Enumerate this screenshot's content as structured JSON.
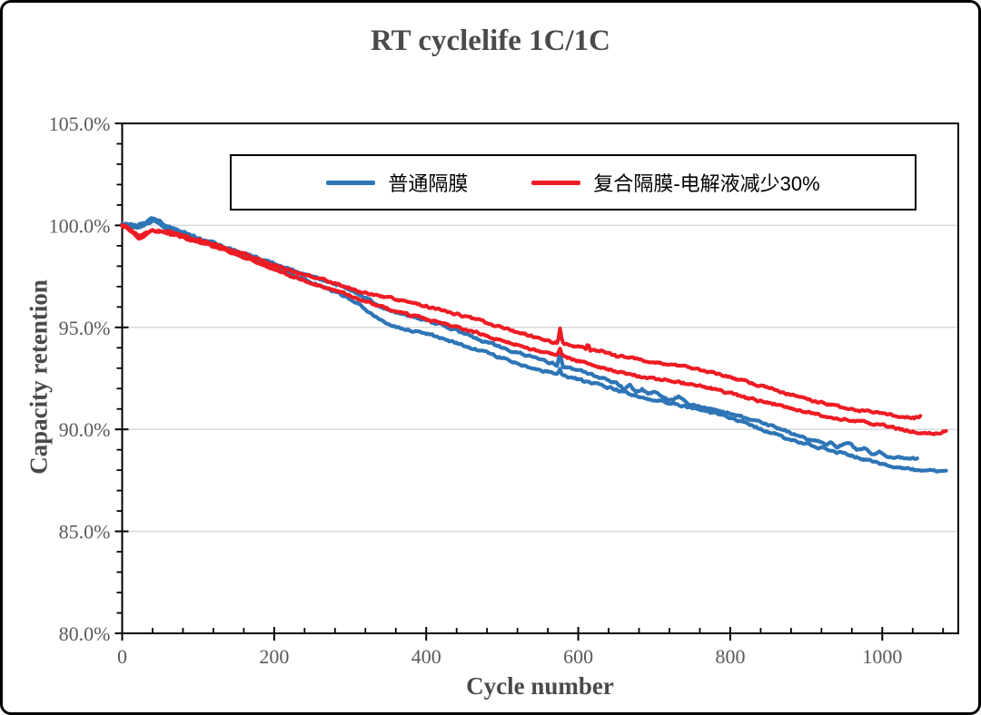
{
  "figure": {
    "title": "RT cyclelife 1C/1C"
  },
  "chart_data": {
    "type": "line",
    "title": "RT cyclelife 1C/1C",
    "xlabel": "Cycle number",
    "ylabel": "Capacity retention",
    "x_axis": {
      "min": 0,
      "max": 1100,
      "major_tick_step": 200,
      "minor_tick_step": 40,
      "ticks": [
        {
          "value": 0,
          "label": "0"
        },
        {
          "value": 200,
          "label": "200"
        },
        {
          "value": 400,
          "label": "400"
        },
        {
          "value": 600,
          "label": "600"
        },
        {
          "value": 800,
          "label": "800"
        },
        {
          "value": 1000,
          "label": "1000"
        }
      ]
    },
    "y_axis": {
      "min": 80,
      "max": 105,
      "major_tick_step": 5,
      "minor_tick_step": 1,
      "unit": "%",
      "ticks": [
        {
          "value": 105,
          "label": "105.0%"
        },
        {
          "value": 100,
          "label": "100.0%"
        },
        {
          "value": 95,
          "label": "95.0%"
        },
        {
          "value": 90,
          "label": "90.0%"
        },
        {
          "value": 85,
          "label": "85.0%"
        },
        {
          "value": 80,
          "label": "80.0%"
        }
      ],
      "gridline_values": [
        100,
        95,
        90,
        85
      ]
    },
    "grid": "horizontal major gridlines only",
    "legend": {
      "position": "top-center-inside-bordered-box",
      "items": [
        {
          "label": "普通隔膜",
          "color": "#2E75B6"
        },
        {
          "label": "复合隔膜-电解液减少30%",
          "color": "#ED1C24"
        }
      ]
    },
    "colors": {
      "blue_series": "#2E75B6",
      "red_series": "#ED1C24",
      "gridline": "#D9D9D9",
      "axis": "#000000",
      "text_gray": "#595959",
      "title_gray": "#4a4a4a"
    },
    "series": [
      {
        "name": "普通隔膜 (cell 1)",
        "legend_index": 0,
        "color": "#2E75B6",
        "points": [
          [
            0,
            100.1
          ],
          [
            8,
            100.05
          ],
          [
            16,
            100.0
          ],
          [
            24,
            100.05
          ],
          [
            32,
            100.15
          ],
          [
            40,
            100.35
          ],
          [
            48,
            100.25
          ],
          [
            56,
            100.0
          ],
          [
            64,
            99.9
          ],
          [
            75,
            99.75
          ],
          [
            90,
            99.55
          ],
          [
            100,
            99.4
          ],
          [
            115,
            99.2
          ],
          [
            130,
            99.0
          ],
          [
            150,
            98.75
          ],
          [
            175,
            98.45
          ],
          [
            200,
            98.1
          ],
          [
            225,
            97.8
          ],
          [
            250,
            97.5
          ],
          [
            275,
            97.2
          ],
          [
            300,
            96.85
          ],
          [
            325,
            96.35
          ],
          [
            345,
            95.95
          ],
          [
            360,
            95.75
          ],
          [
            375,
            95.6
          ],
          [
            400,
            95.35
          ],
          [
            425,
            95.05
          ],
          [
            450,
            94.7
          ],
          [
            475,
            94.35
          ],
          [
            500,
            94.0
          ],
          [
            525,
            93.7
          ],
          [
            550,
            93.4
          ],
          [
            565,
            93.25
          ],
          [
            573,
            93.15
          ],
          [
            576,
            93.9
          ],
          [
            579,
            93.1
          ],
          [
            600,
            92.9
          ],
          [
            625,
            92.6
          ],
          [
            650,
            92.3
          ],
          [
            660,
            92.0
          ],
          [
            668,
            92.15
          ],
          [
            676,
            91.8
          ],
          [
            684,
            92.0
          ],
          [
            692,
            91.7
          ],
          [
            700,
            91.85
          ],
          [
            710,
            91.6
          ],
          [
            722,
            91.45
          ],
          [
            732,
            91.6
          ],
          [
            742,
            91.3
          ],
          [
            755,
            91.15
          ],
          [
            775,
            91.0
          ],
          [
            800,
            90.8
          ],
          [
            825,
            90.5
          ],
          [
            850,
            90.2
          ],
          [
            875,
            89.9
          ],
          [
            890,
            89.65
          ],
          [
            905,
            89.5
          ],
          [
            915,
            89.45
          ],
          [
            925,
            89.2
          ],
          [
            933,
            89.4
          ],
          [
            941,
            89.1
          ],
          [
            950,
            89.3
          ],
          [
            960,
            89.25
          ],
          [
            967,
            88.95
          ],
          [
            977,
            89.1
          ],
          [
            987,
            88.8
          ],
          [
            997,
            88.9
          ],
          [
            1007,
            88.7
          ],
          [
            1020,
            88.6
          ],
          [
            1035,
            88.57
          ],
          [
            1047,
            88.6
          ]
        ]
      },
      {
        "name": "普通隔膜 (cell 2)",
        "legend_index": 0,
        "color": "#2E75B6",
        "points": [
          [
            0,
            100.05
          ],
          [
            8,
            100.0
          ],
          [
            16,
            99.9
          ],
          [
            24,
            99.95
          ],
          [
            32,
            100.05
          ],
          [
            40,
            100.25
          ],
          [
            48,
            100.15
          ],
          [
            56,
            99.9
          ],
          [
            64,
            99.8
          ],
          [
            75,
            99.65
          ],
          [
            90,
            99.45
          ],
          [
            100,
            99.3
          ],
          [
            115,
            99.1
          ],
          [
            130,
            98.9
          ],
          [
            150,
            98.6
          ],
          [
            175,
            98.25
          ],
          [
            200,
            97.9
          ],
          [
            225,
            97.55
          ],
          [
            250,
            97.2
          ],
          [
            275,
            96.8
          ],
          [
            300,
            96.4
          ],
          [
            325,
            95.75
          ],
          [
            345,
            95.25
          ],
          [
            355,
            95.05
          ],
          [
            375,
            94.9
          ],
          [
            400,
            94.7
          ],
          [
            425,
            94.4
          ],
          [
            450,
            94.1
          ],
          [
            475,
            93.8
          ],
          [
            500,
            93.5
          ],
          [
            525,
            93.2
          ],
          [
            550,
            92.9
          ],
          [
            573,
            92.7
          ],
          [
            576,
            93.0
          ],
          [
            579,
            92.65
          ],
          [
            600,
            92.45
          ],
          [
            625,
            92.2
          ],
          [
            650,
            91.95
          ],
          [
            675,
            91.65
          ],
          [
            700,
            91.45
          ],
          [
            725,
            91.25
          ],
          [
            750,
            91.05
          ],
          [
            775,
            90.85
          ],
          [
            800,
            90.55
          ],
          [
            825,
            90.25
          ],
          [
            850,
            89.9
          ],
          [
            875,
            89.55
          ],
          [
            900,
            89.3
          ],
          [
            913,
            89.15
          ],
          [
            925,
            89.05
          ],
          [
            950,
            88.8
          ],
          [
            975,
            88.55
          ],
          [
            1000,
            88.3
          ],
          [
            1025,
            88.1
          ],
          [
            1045,
            88.0
          ],
          [
            1065,
            87.95
          ],
          [
            1085,
            87.9
          ]
        ]
      },
      {
        "name": "复合隔膜-电解液减少30% (cell 1)",
        "legend_index": 1,
        "color": "#ED1C24",
        "points": [
          [
            0,
            100.0
          ],
          [
            8,
            99.9
          ],
          [
            14,
            99.7
          ],
          [
            22,
            99.45
          ],
          [
            30,
            99.6
          ],
          [
            40,
            99.8
          ],
          [
            50,
            99.75
          ],
          [
            60,
            99.7
          ],
          [
            75,
            99.55
          ],
          [
            90,
            99.4
          ],
          [
            100,
            99.3
          ],
          [
            115,
            99.1
          ],
          [
            130,
            98.95
          ],
          [
            150,
            98.7
          ],
          [
            175,
            98.4
          ],
          [
            200,
            98.05
          ],
          [
            225,
            97.75
          ],
          [
            250,
            97.5
          ],
          [
            275,
            97.2
          ],
          [
            300,
            96.9
          ],
          [
            325,
            96.65
          ],
          [
            350,
            96.45
          ],
          [
            375,
            96.25
          ],
          [
            400,
            96.05
          ],
          [
            425,
            95.8
          ],
          [
            450,
            95.55
          ],
          [
            475,
            95.3
          ],
          [
            500,
            95.0
          ],
          [
            525,
            94.7
          ],
          [
            550,
            94.45
          ],
          [
            565,
            94.3
          ],
          [
            573,
            94.25
          ],
          [
            576,
            94.95
          ],
          [
            579,
            94.2
          ],
          [
            600,
            94.05
          ],
          [
            610,
            93.95
          ],
          [
            613,
            94.3
          ],
          [
            616,
            93.9
          ],
          [
            630,
            93.85
          ],
          [
            650,
            93.6
          ],
          [
            675,
            93.45
          ],
          [
            700,
            93.3
          ],
          [
            725,
            93.15
          ],
          [
            750,
            93.0
          ],
          [
            775,
            92.8
          ],
          [
            800,
            92.55
          ],
          [
            825,
            92.3
          ],
          [
            850,
            92.05
          ],
          [
            875,
            91.75
          ],
          [
            900,
            91.5
          ],
          [
            925,
            91.25
          ],
          [
            950,
            91.05
          ],
          [
            975,
            90.9
          ],
          [
            1000,
            90.8
          ],
          [
            1015,
            90.7
          ],
          [
            1030,
            90.6
          ],
          [
            1042,
            90.55
          ],
          [
            1050,
            90.65
          ]
        ]
      },
      {
        "name": "复合隔膜-电解液减少30% (cell 2)",
        "legend_index": 1,
        "color": "#ED1C24",
        "points": [
          [
            0,
            99.95
          ],
          [
            8,
            99.85
          ],
          [
            14,
            99.65
          ],
          [
            22,
            99.4
          ],
          [
            30,
            99.55
          ],
          [
            40,
            99.75
          ],
          [
            50,
            99.7
          ],
          [
            60,
            99.6
          ],
          [
            75,
            99.45
          ],
          [
            90,
            99.3
          ],
          [
            100,
            99.2
          ],
          [
            115,
            99.0
          ],
          [
            130,
            98.85
          ],
          [
            150,
            98.55
          ],
          [
            175,
            98.2
          ],
          [
            200,
            97.8
          ],
          [
            225,
            97.5
          ],
          [
            250,
            97.2
          ],
          [
            275,
            96.85
          ],
          [
            300,
            96.55
          ],
          [
            325,
            96.2
          ],
          [
            350,
            95.9
          ],
          [
            375,
            95.65
          ],
          [
            400,
            95.4
          ],
          [
            425,
            95.15
          ],
          [
            450,
            94.9
          ],
          [
            475,
            94.65
          ],
          [
            500,
            94.35
          ],
          [
            525,
            94.05
          ],
          [
            550,
            93.8
          ],
          [
            573,
            93.65
          ],
          [
            576,
            93.95
          ],
          [
            579,
            93.6
          ],
          [
            600,
            93.35
          ],
          [
            625,
            93.1
          ],
          [
            650,
            92.85
          ],
          [
            675,
            92.65
          ],
          [
            700,
            92.5
          ],
          [
            725,
            92.35
          ],
          [
            750,
            92.2
          ],
          [
            775,
            92.0
          ],
          [
            800,
            91.75
          ],
          [
            825,
            91.5
          ],
          [
            850,
            91.3
          ],
          [
            875,
            91.1
          ],
          [
            900,
            90.85
          ],
          [
            925,
            90.65
          ],
          [
            950,
            90.5
          ],
          [
            975,
            90.35
          ],
          [
            1000,
            90.2
          ],
          [
            1025,
            90.0
          ],
          [
            1045,
            89.85
          ],
          [
            1060,
            89.8
          ],
          [
            1072,
            89.78
          ],
          [
            1085,
            89.95
          ]
        ]
      }
    ]
  }
}
